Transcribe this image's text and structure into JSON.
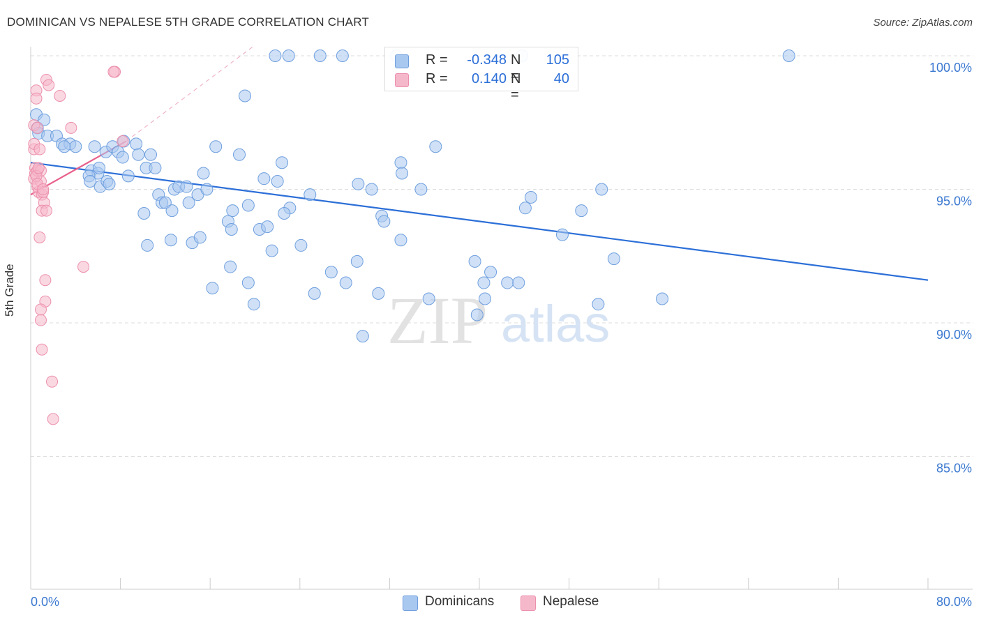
{
  "title": "DOMINICAN VS NEPALESE 5TH GRADE CORRELATION CHART",
  "source": "Source: ZipAtlas.com",
  "watermark": {
    "zip": "ZIP",
    "atlas": "atlas"
  },
  "colors": {
    "blue_fill": "#a9c8f0",
    "blue_stroke": "#6f9fde",
    "blue_line": "#2c6fd8",
    "pink_fill": "#f5b8cb",
    "pink_stroke": "#ec8fac",
    "pink_line": "#e8608c",
    "grid": "#dddddd",
    "axis_label": "#3a78d0"
  },
  "legend_top": {
    "rows": [
      {
        "r_label": "R =",
        "r_value": "-0.348",
        "n_label": "N =",
        "n_value": "105",
        "color": "#a9c8f0",
        "border": "#6f9fde"
      },
      {
        "r_label": "R =",
        "r_value": "0.140",
        "n_label": "N =",
        "n_value": "40",
        "color": "#f5b8cb",
        "border": "#ec8fac"
      }
    ]
  },
  "legend_bottom": [
    {
      "label": "Dominicans",
      "color": "#a9c8f0",
      "border": "#6f9fde"
    },
    {
      "label": "Nepalese",
      "color": "#f5b8cb",
      "border": "#ec8fac"
    }
  ],
  "chart_data": {
    "type": "scatter",
    "title": "DOMINICAN VS NEPALESE 5TH GRADE CORRELATION CHART",
    "xlabel": "",
    "ylabel": "5th Grade",
    "xlim": [
      0,
      80
    ],
    "ylim": [
      80.5,
      100.4
    ],
    "x_tick_labels": [
      "0.0%",
      "80.0%"
    ],
    "y_ticks": [
      85,
      90,
      95,
      100
    ],
    "y_tick_labels": [
      "85.0%",
      "90.0%",
      "95.0%",
      "100.0%"
    ],
    "grid": true,
    "legend_position": "top-center",
    "series": [
      {
        "name": "Dominicans",
        "color": "#a9c8f0",
        "points": [
          [
            0.5,
            97.8
          ],
          [
            0.6,
            97.3
          ],
          [
            0.7,
            97.1
          ],
          [
            1.2,
            97.6
          ],
          [
            1.5,
            97.0
          ],
          [
            2.3,
            97.0
          ],
          [
            2.8,
            96.7
          ],
          [
            3.5,
            96.7
          ],
          [
            4.0,
            96.6
          ],
          [
            3.0,
            96.6
          ],
          [
            5.7,
            96.6
          ],
          [
            6.7,
            96.4
          ],
          [
            7.3,
            96.6
          ],
          [
            7.8,
            96.4
          ],
          [
            8.2,
            96.2
          ],
          [
            8.3,
            96.8
          ],
          [
            9.4,
            96.7
          ],
          [
            9.6,
            96.3
          ],
          [
            10.7,
            96.3
          ],
          [
            5.4,
            95.7
          ],
          [
            6.0,
            95.6
          ],
          [
            5.2,
            95.5
          ],
          [
            5.3,
            95.3
          ],
          [
            6.2,
            95.1
          ],
          [
            6.8,
            95.3
          ],
          [
            8.7,
            95.5
          ],
          [
            10.3,
            95.8
          ],
          [
            11.1,
            95.8
          ],
          [
            11.4,
            94.8
          ],
          [
            11.7,
            94.5
          ],
          [
            12.0,
            94.5
          ],
          [
            12.6,
            94.2
          ],
          [
            12.8,
            95.0
          ],
          [
            13.2,
            95.1
          ],
          [
            14.1,
            94.5
          ],
          [
            14.9,
            94.8
          ],
          [
            15.4,
            95.6
          ],
          [
            15.7,
            95.0
          ],
          [
            16.5,
            96.6
          ],
          [
            18.6,
            96.3
          ],
          [
            18.0,
            94.2
          ],
          [
            17.6,
            93.8
          ],
          [
            17.9,
            93.5
          ],
          [
            19.4,
            94.4
          ],
          [
            20.4,
            93.5
          ],
          [
            21.1,
            93.6
          ],
          [
            20.8,
            95.4
          ],
          [
            22.0,
            95.3
          ],
          [
            22.4,
            96.0
          ],
          [
            23.1,
            94.3
          ],
          [
            24.1,
            92.9
          ],
          [
            24.9,
            94.8
          ],
          [
            25.3,
            91.1
          ],
          [
            26.8,
            91.9
          ],
          [
            28.1,
            91.5
          ],
          [
            29.1,
            92.3
          ],
          [
            29.2,
            95.2
          ],
          [
            30.4,
            95.0
          ],
          [
            31.3,
            94.0
          ],
          [
            31.5,
            93.8
          ],
          [
            31.0,
            91.1
          ],
          [
            33.0,
            93.1
          ],
          [
            33.0,
            96.0
          ],
          [
            33.1,
            95.6
          ],
          [
            34.8,
            95.0
          ],
          [
            35.5,
            90.9
          ],
          [
            36.1,
            96.6
          ],
          [
            39.6,
            92.3
          ],
          [
            39.8,
            90.3
          ],
          [
            40.5,
            90.9
          ],
          [
            40.4,
            91.5
          ],
          [
            41.0,
            91.9
          ],
          [
            42.5,
            91.5
          ],
          [
            43.5,
            91.5
          ],
          [
            44.1,
            94.3
          ],
          [
            44.6,
            94.7
          ],
          [
            47.4,
            93.3
          ],
          [
            49.1,
            94.2
          ],
          [
            50.9,
            95.0
          ],
          [
            50.6,
            90.7
          ],
          [
            52.0,
            92.4
          ],
          [
            56.3,
            90.9
          ],
          [
            10.1,
            94.1
          ],
          [
            10.4,
            92.9
          ],
          [
            12.5,
            93.1
          ],
          [
            14.4,
            93.0
          ],
          [
            15.1,
            93.2
          ],
          [
            16.2,
            91.3
          ],
          [
            17.8,
            92.1
          ],
          [
            19.4,
            91.5
          ],
          [
            19.9,
            90.7
          ],
          [
            21.5,
            92.7
          ],
          [
            19.1,
            98.5
          ],
          [
            21.8,
            100.0
          ],
          [
            23.0,
            100.0
          ],
          [
            25.8,
            100.0
          ],
          [
            27.8,
            100.0
          ],
          [
            32.6,
            100.0
          ],
          [
            43.8,
            100.0
          ],
          [
            67.6,
            100.0
          ],
          [
            6.1,
            95.8
          ],
          [
            7.0,
            95.2
          ],
          [
            22.6,
            94.1
          ],
          [
            13.9,
            95.1
          ],
          [
            29.6,
            89.5
          ]
        ]
      },
      {
        "name": "Nepalese",
        "color": "#f5b8cb",
        "points": [
          [
            0.3,
            97.4
          ],
          [
            0.3,
            96.5
          ],
          [
            0.3,
            96.7
          ],
          [
            0.4,
            95.8
          ],
          [
            0.3,
            95.4
          ],
          [
            0.4,
            95.6
          ],
          [
            0.6,
            95.7
          ],
          [
            0.5,
            98.7
          ],
          [
            0.5,
            98.4
          ],
          [
            0.6,
            97.3
          ],
          [
            0.6,
            95.1
          ],
          [
            0.7,
            94.9
          ],
          [
            0.8,
            96.5
          ],
          [
            0.9,
            95.7
          ],
          [
            0.9,
            95.3
          ],
          [
            1.0,
            94.8
          ],
          [
            1.1,
            94.9
          ],
          [
            1.2,
            94.5
          ],
          [
            1.0,
            94.2
          ],
          [
            1.4,
            94.2
          ],
          [
            0.8,
            93.2
          ],
          [
            1.4,
            99.1
          ],
          [
            1.6,
            98.9
          ],
          [
            2.6,
            98.5
          ],
          [
            3.6,
            97.3
          ],
          [
            7.5,
            99.4
          ],
          [
            8.2,
            96.8
          ],
          [
            4.7,
            92.1
          ],
          [
            1.3,
            91.6
          ],
          [
            1.3,
            90.8
          ],
          [
            0.9,
            90.5
          ],
          [
            0.9,
            90.1
          ],
          [
            1.0,
            89.0
          ],
          [
            1.9,
            87.8
          ],
          [
            2.0,
            86.4
          ],
          [
            0.5,
            95.5
          ],
          [
            0.7,
            95.8
          ],
          [
            0.6,
            95.2
          ],
          [
            1.1,
            95.0
          ],
          [
            7.4,
            99.4
          ]
        ]
      }
    ],
    "trend_lines": [
      {
        "series": "Dominicans",
        "x": [
          0,
          80
        ],
        "y": [
          96.0,
          91.6
        ]
      },
      {
        "series": "Nepalese",
        "x": [
          0,
          8.5
        ],
        "y": [
          94.8,
          96.8
        ],
        "dashed_extension_to": [
          20,
          100.4
        ]
      }
    ],
    "stats": [
      {
        "series": "Dominicans",
        "R": -0.348,
        "N": 105
      },
      {
        "series": "Nepalese",
        "R": 0.14,
        "N": 40
      }
    ]
  }
}
